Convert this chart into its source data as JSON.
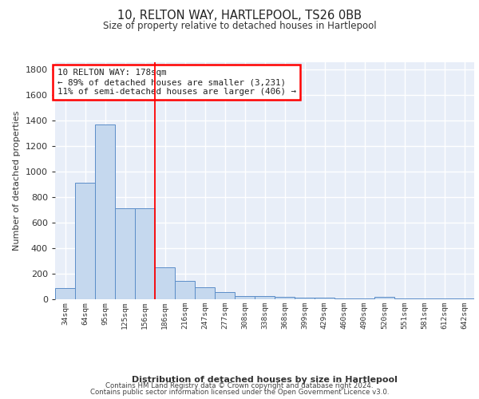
{
  "title1": "10, RELTON WAY, HARTLEPOOL, TS26 0BB",
  "title2": "Size of property relative to detached houses in Hartlepool",
  "xlabel": "Distribution of detached houses by size in Hartlepool",
  "ylabel": "Number of detached properties",
  "categories": [
    "34sqm",
    "64sqm",
    "95sqm",
    "125sqm",
    "156sqm",
    "186sqm",
    "216sqm",
    "247sqm",
    "277sqm",
    "308sqm",
    "338sqm",
    "368sqm",
    "399sqm",
    "429sqm",
    "460sqm",
    "490sqm",
    "520sqm",
    "551sqm",
    "581sqm",
    "612sqm",
    "642sqm"
  ],
  "values": [
    90,
    910,
    1370,
    715,
    715,
    248,
    145,
    95,
    55,
    25,
    25,
    20,
    15,
    15,
    5,
    5,
    20,
    5,
    5,
    5,
    5
  ],
  "bar_color": "#c5d8ee",
  "bar_edge_color": "#5b8dc8",
  "background_color": "#e8eef8",
  "grid_color": "#ffffff",
  "annotation_text": "10 RELTON WAY: 178sqm\n← 89% of detached houses are smaller (3,231)\n11% of semi-detached houses are larger (406) →",
  "footer_line1": "Contains HM Land Registry data © Crown copyright and database right 2024.",
  "footer_line2": "Contains public sector information licensed under the Open Government Licence v3.0.",
  "ylim": [
    0,
    1860
  ],
  "yticks": [
    0,
    200,
    400,
    600,
    800,
    1000,
    1200,
    1400,
    1600,
    1800
  ],
  "red_line_index": 5,
  "property_sqm": 178,
  "bin_width": 31
}
